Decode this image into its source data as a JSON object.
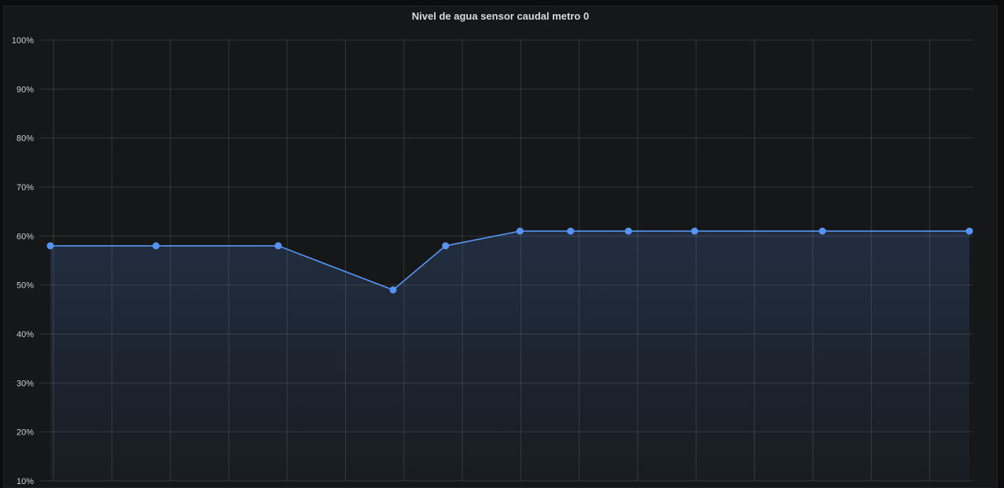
{
  "panel": {
    "title": "Nivel de agua sensor caudal metro 0"
  },
  "chart_data": {
    "type": "area",
    "title": "Nivel de agua sensor caudal metro 0",
    "xlabel": "",
    "ylabel": "",
    "ylim": [
      10,
      100
    ],
    "yticks": [
      "100%",
      "90%",
      "80%",
      "70%",
      "60%",
      "50%",
      "40%",
      "30%",
      "20%",
      "10%"
    ],
    "grid": true,
    "legend": "none",
    "x_ticks_visible": false,
    "series": [
      {
        "x": [
          0,
          0.115,
          0.248,
          0.373,
          0.43,
          0.511,
          0.566,
          0.629,
          0.701,
          0.84,
          1.0
        ],
        "values": [
          58,
          58,
          58,
          49,
          58,
          61,
          61,
          61,
          61,
          61,
          61
        ],
        "color": "#5794f2"
      }
    ]
  }
}
